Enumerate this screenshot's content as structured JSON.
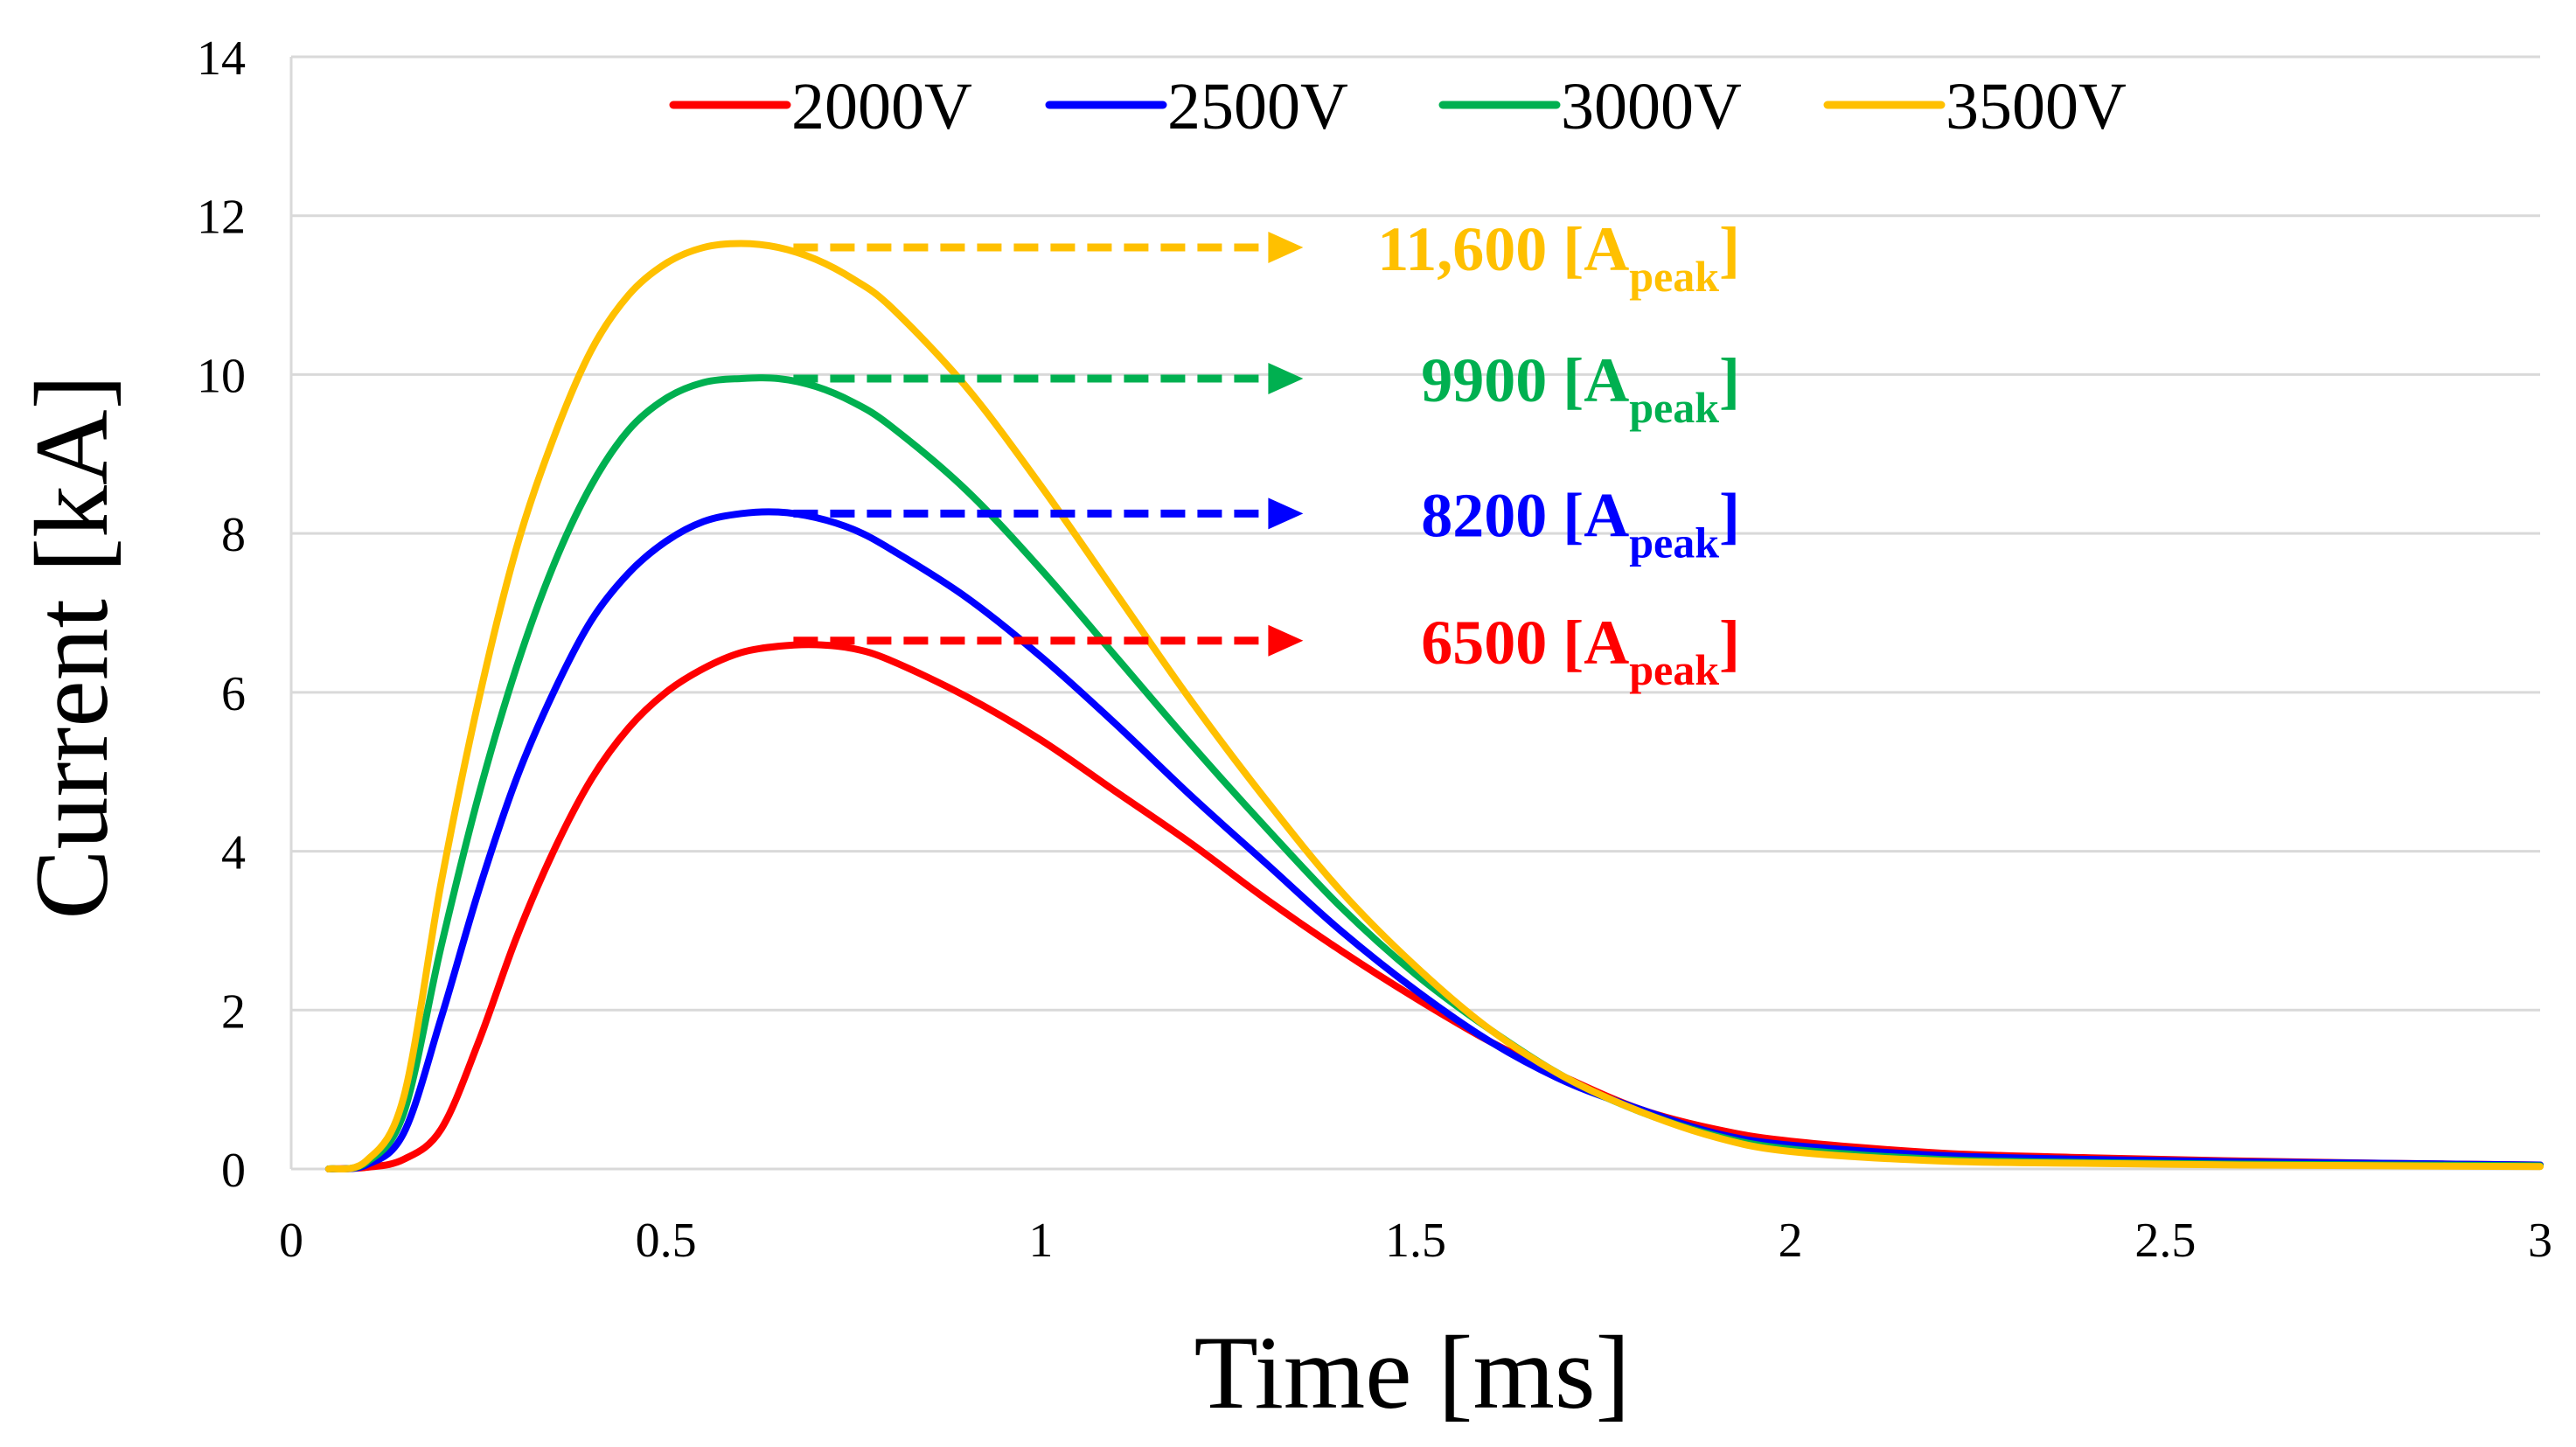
{
  "chart_data": {
    "type": "line",
    "xlabel": "Time [ms]",
    "ylabel": "Current [kA]",
    "xlim": [
      0,
      3
    ],
    "ylim": [
      0,
      14
    ],
    "x_ticks": [
      "0",
      "0.5",
      "1",
      "1.5",
      "2",
      "2.5",
      "3"
    ],
    "y_ticks": [
      "0",
      "2",
      "4",
      "6",
      "8",
      "10",
      "12",
      "14"
    ],
    "grid": "horizontal",
    "legend_position": "top",
    "series": [
      {
        "name": "2000V",
        "color": "#ff0000",
        "x": [
          0.05,
          0.1,
          0.15,
          0.2,
          0.25,
          0.3,
          0.35,
          0.4,
          0.45,
          0.5,
          0.55,
          0.6,
          0.65,
          0.7,
          0.75,
          0.8,
          0.9,
          1.0,
          1.1,
          1.2,
          1.3,
          1.4,
          1.5,
          1.6,
          1.7,
          1.8,
          1.9,
          2.0,
          2.2,
          2.4,
          2.6,
          2.8,
          3.0
        ],
        "y": [
          0.0,
          0.02,
          0.12,
          0.5,
          1.6,
          2.9,
          4.0,
          4.9,
          5.55,
          6.0,
          6.3,
          6.5,
          6.58,
          6.6,
          6.55,
          6.4,
          5.95,
          5.4,
          4.75,
          4.1,
          3.4,
          2.75,
          2.15,
          1.6,
          1.15,
          0.75,
          0.5,
          0.35,
          0.2,
          0.14,
          0.1,
          0.07,
          0.05
        ]
      },
      {
        "name": "2500V",
        "color": "#0000ff",
        "x": [
          0.05,
          0.1,
          0.15,
          0.2,
          0.25,
          0.3,
          0.35,
          0.4,
          0.45,
          0.5,
          0.55,
          0.6,
          0.65,
          0.7,
          0.75,
          0.8,
          0.9,
          1.0,
          1.1,
          1.2,
          1.3,
          1.4,
          1.5,
          1.6,
          1.7,
          1.8,
          1.9,
          2.0,
          2.2,
          2.4,
          2.6,
          2.8,
          3.0
        ],
        "y": [
          0.0,
          0.05,
          0.45,
          1.9,
          3.5,
          4.9,
          6.0,
          6.9,
          7.5,
          7.9,
          8.15,
          8.25,
          8.27,
          8.2,
          8.05,
          7.8,
          7.2,
          6.45,
          5.6,
          4.7,
          3.85,
          3.0,
          2.25,
          1.6,
          1.1,
          0.75,
          0.45,
          0.3,
          0.17,
          0.12,
          0.09,
          0.07,
          0.05
        ]
      },
      {
        "name": "3000V",
        "color": "#00b050",
        "x": [
          0.05,
          0.1,
          0.15,
          0.2,
          0.25,
          0.3,
          0.35,
          0.4,
          0.45,
          0.5,
          0.55,
          0.6,
          0.65,
          0.7,
          0.75,
          0.8,
          0.9,
          1.0,
          1.1,
          1.2,
          1.3,
          1.4,
          1.5,
          1.6,
          1.7,
          1.8,
          1.9,
          2.0,
          2.2,
          2.4,
          2.6,
          2.8,
          3.0
        ],
        "y": [
          0.0,
          0.08,
          0.7,
          2.8,
          4.7,
          6.3,
          7.6,
          8.6,
          9.3,
          9.7,
          9.9,
          9.95,
          9.95,
          9.85,
          9.65,
          9.35,
          8.55,
          7.55,
          6.45,
          5.35,
          4.3,
          3.3,
          2.45,
          1.75,
          1.15,
          0.72,
          0.42,
          0.25,
          0.12,
          0.08,
          0.06,
          0.05,
          0.04
        ]
      },
      {
        "name": "3500V",
        "color": "#ffc000",
        "x": [
          0.05,
          0.1,
          0.15,
          0.2,
          0.25,
          0.3,
          0.35,
          0.4,
          0.45,
          0.5,
          0.55,
          0.6,
          0.65,
          0.7,
          0.75,
          0.8,
          0.9,
          1.0,
          1.1,
          1.2,
          1.3,
          1.4,
          1.5,
          1.6,
          1.7,
          1.8,
          1.9,
          2.0,
          2.2,
          2.4,
          2.6,
          2.8,
          3.0
        ],
        "y": [
          0.0,
          0.1,
          0.9,
          3.6,
          5.9,
          7.8,
          9.2,
          10.3,
          11.0,
          11.4,
          11.6,
          11.65,
          11.6,
          11.45,
          11.2,
          10.85,
          9.85,
          8.6,
          7.25,
          5.9,
          4.65,
          3.5,
          2.55,
          1.75,
          1.15,
          0.72,
          0.4,
          0.22,
          0.1,
          0.07,
          0.05,
          0.04,
          0.03
        ]
      }
    ],
    "annotations": [
      {
        "label": "11,600 [A",
        "sub": "peak",
        "close": "]",
        "color": "#ffc000",
        "y": 11.6,
        "x_start": 0.67,
        "x_end": 1.35
      },
      {
        "label": "9900 [A",
        "sub": "peak",
        "close": "]",
        "color": "#00b050",
        "y": 9.95,
        "x_start": 0.67,
        "x_end": 1.35
      },
      {
        "label": "8200 [A",
        "sub": "peak",
        "close": "]",
        "color": "#0000ff",
        "y": 8.25,
        "x_start": 0.67,
        "x_end": 1.35
      },
      {
        "label": "6500 [A",
        "sub": "peak",
        "close": "]",
        "color": "#ff0000",
        "y": 6.65,
        "x_start": 0.67,
        "x_end": 1.35
      }
    ]
  }
}
